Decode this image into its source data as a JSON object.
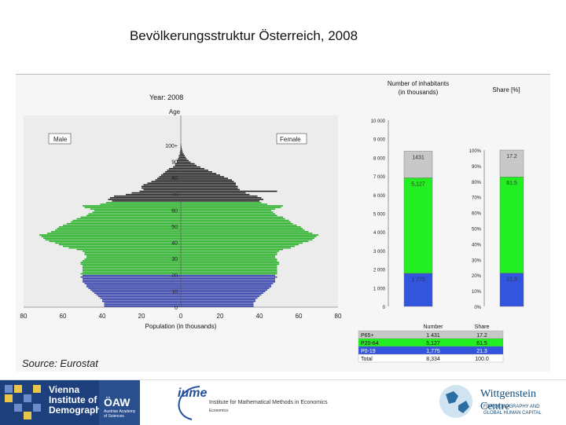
{
  "slide": {
    "title": "Bevölkerungsstruktur Österreich, 2008",
    "source": "Source: Eurostat"
  },
  "chart_data": [
    {
      "type": "bar",
      "orientation": "horizontal",
      "subtype": "population-pyramid",
      "title": "Year: 2008",
      "xlabel": "Population (in thousands)",
      "ylabel": "Age",
      "x_ticks": [
        "80",
        "60",
        "40",
        "20",
        "0",
        "20",
        "40",
        "60",
        "80"
      ],
      "y_ticks": [
        "0",
        "10",
        "20",
        "30",
        "40",
        "50",
        "60",
        "70",
        "80",
        "90",
        "100+"
      ],
      "xlim": [
        -80,
        80
      ],
      "legend": [
        "Male",
        "Female"
      ],
      "colors": {
        "age_0_19": "#2e3aa8",
        "age_20_64": "#22b022",
        "age_65_plus": "#202020",
        "background": "#ececec"
      },
      "ages": [
        0,
        1,
        2,
        3,
        4,
        5,
        6,
        7,
        8,
        9,
        10,
        11,
        12,
        13,
        14,
        15,
        16,
        17,
        18,
        19,
        20,
        21,
        22,
        23,
        24,
        25,
        26,
        27,
        28,
        29,
        30,
        31,
        32,
        33,
        34,
        35,
        36,
        37,
        38,
        39,
        40,
        41,
        42,
        43,
        44,
        45,
        46,
        47,
        48,
        49,
        50,
        51,
        52,
        53,
        54,
        55,
        56,
        57,
        58,
        59,
        60,
        61,
        62,
        63,
        64,
        65,
        66,
        67,
        68,
        69,
        70,
        71,
        72,
        73,
        74,
        75,
        76,
        77,
        78,
        79,
        80,
        81,
        82,
        83,
        84,
        85,
        86,
        87,
        88,
        89,
        90,
        91,
        92,
        93,
        94,
        95,
        96,
        97,
        98,
        99,
        100
      ],
      "series": [
        {
          "name": "Male",
          "values": [
            39,
            39,
            39,
            40,
            40,
            41,
            42,
            43,
            44,
            45,
            46,
            47,
            48,
            48,
            49,
            50,
            50,
            50,
            51,
            50,
            51,
            50,
            50,
            50,
            50,
            50,
            51,
            51,
            50,
            49,
            48,
            48,
            49,
            49,
            50,
            53,
            57,
            60,
            62,
            64,
            67,
            69,
            70,
            71,
            72,
            68,
            66,
            64,
            63,
            62,
            60,
            58,
            56,
            55,
            53,
            51,
            48,
            47,
            45,
            44,
            46,
            49,
            50,
            41,
            38,
            35,
            37,
            36,
            34,
            28,
            25,
            21,
            19,
            20,
            20,
            19,
            17,
            15,
            13,
            12,
            11,
            10,
            9,
            8,
            7,
            6,
            4,
            3,
            3,
            2,
            2,
            1.5,
            1,
            1,
            0.5,
            0.5,
            0.3,
            0.2,
            0.1,
            0.1,
            0.1
          ]
        },
        {
          "name": "Female",
          "values": [
            37,
            37,
            37,
            38,
            38,
            39,
            40,
            41,
            42,
            43,
            44,
            45,
            46,
            46,
            47,
            48,
            48,
            48,
            49,
            48,
            49,
            49,
            49,
            49,
            49,
            49,
            50,
            50,
            49,
            49,
            48,
            48,
            49,
            49,
            50,
            52,
            56,
            58,
            60,
            62,
            65,
            67,
            68,
            69,
            70,
            67,
            65,
            63,
            62,
            61,
            59,
            57,
            56,
            55,
            53,
            52,
            49,
            48,
            47,
            46,
            48,
            51,
            52,
            44,
            41,
            40,
            42,
            41,
            39,
            35,
            33,
            49,
            30,
            29,
            29,
            28,
            28,
            27,
            26,
            24,
            22,
            20,
            18,
            16,
            14,
            12,
            10,
            8,
            7,
            5,
            4,
            3,
            2.5,
            2,
            1.5,
            1,
            0.8,
            0.6,
            0.4,
            0.3,
            0.2
          ]
        }
      ]
    },
    {
      "type": "bar",
      "subtype": "stacked",
      "title": "Number of inhabitants (in thousands)",
      "categories": [
        "Number"
      ],
      "y_ticks": [
        "0",
        "1 000",
        "2 000",
        "3 000",
        "4 000",
        "5 000",
        "6 000",
        "7 000",
        "8 000",
        "9 000",
        "10 000"
      ],
      "ylim": [
        0,
        10000
      ],
      "series": [
        {
          "name": "P0-19",
          "values": [
            1775
          ],
          "label": "1 775",
          "color": "#3355dd"
        },
        {
          "name": "P20-64",
          "values": [
            5127
          ],
          "label": "5,127",
          "color": "#22ee22"
        },
        {
          "name": "P65+",
          "values": [
            1431
          ],
          "label": "1431",
          "color": "#c8c8c8"
        }
      ]
    },
    {
      "type": "bar",
      "subtype": "stacked-percent",
      "title": "Share [%]",
      "categories": [
        "Share"
      ],
      "y_ticks": [
        "0%",
        "10%",
        "20%",
        "30%",
        "40%",
        "50%",
        "60%",
        "70%",
        "80%",
        "90%",
        "100%"
      ],
      "ylim": [
        0,
        100
      ],
      "series": [
        {
          "name": "P0-19",
          "values": [
            21.3
          ],
          "label": "21.3",
          "color": "#3355dd"
        },
        {
          "name": "P20-64",
          "values": [
            61.5
          ],
          "label": "61.5",
          "color": "#22ee22"
        },
        {
          "name": "P65+",
          "values": [
            17.2
          ],
          "label": "17.2",
          "color": "#c8c8c8"
        }
      ]
    },
    {
      "type": "table",
      "columns": [
        "",
        "Number",
        "Share"
      ],
      "rows": [
        {
          "label": "P65+",
          "number": "1 431",
          "share": "17.2",
          "color": "#c8c8c8"
        },
        {
          "label": "P20-64",
          "number": "5,127",
          "share": "61.5",
          "color": "#22ee22"
        },
        {
          "label": "P0-19",
          "number": "1,775",
          "share": "21.3",
          "color": "#3355dd"
        },
        {
          "label": "Total",
          "number": "8,334",
          "share": "100.0",
          "color": "#ffffff"
        }
      ]
    }
  ],
  "footer": {
    "vid_text": [
      "Vienna",
      "Institute of",
      "Demography"
    ],
    "oaw_mark": "ÖAW",
    "oaw_sub": "Austrian Academy of Sciences",
    "iume_logo": "iume",
    "iume_text": "Institute for Mathematical Methods in Economics",
    "iume_small": "Economics",
    "wc_name": "Wittgenstein Centre",
    "wc_sub": [
      "FOR DEMOGRAPHY AND",
      "GLOBAL HUMAN CAPITAL"
    ]
  }
}
